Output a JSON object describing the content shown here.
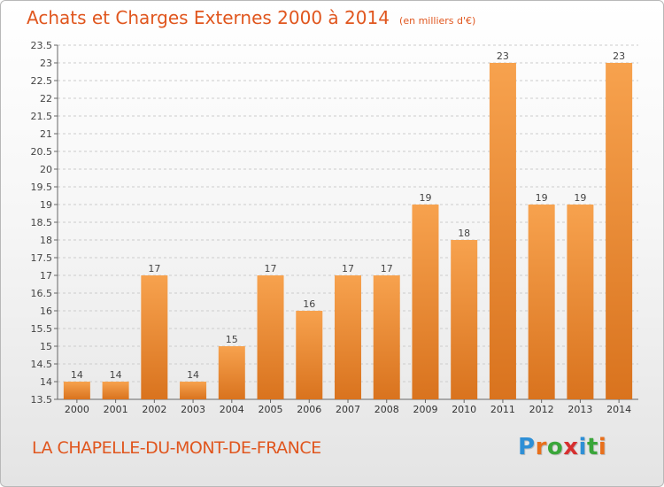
{
  "header": {
    "title": "Achats et Charges Externes 2000 à 2014",
    "unit": "(en milliers d'€)"
  },
  "footer": {
    "place": "LA CHAPELLE-DU-MONT-DE-FRANCE",
    "logo_letters": [
      "P",
      "r",
      "o",
      "x",
      "i",
      "t",
      "i"
    ],
    "logo_colors": [
      "#2e8fd6",
      "#e8701c",
      "#3aa63a",
      "#d62f2f",
      "#2e8fd6",
      "#3aa63a",
      "#e8701c"
    ]
  },
  "colors": {
    "bar_top": "#f7a24e",
    "bar_bottom": "#d9731e",
    "title": "#e0561e",
    "grid": "#cccccc"
  },
  "chart_data": {
    "type": "bar",
    "title": "Achats et Charges Externes 2000 à 2014",
    "categories": [
      "2000",
      "2001",
      "2002",
      "2003",
      "2004",
      "2005",
      "2006",
      "2007",
      "2008",
      "2009",
      "2010",
      "2011",
      "2012",
      "2013",
      "2014"
    ],
    "values": [
      14,
      14,
      17,
      14,
      15,
      17,
      16,
      17,
      17,
      19,
      18,
      23,
      19,
      19,
      23
    ],
    "ylim": [
      13.5,
      23.5
    ],
    "yticks": [
      13.5,
      14,
      14.5,
      15,
      15.5,
      16,
      16.5,
      17,
      17.5,
      18,
      18.5,
      19,
      19.5,
      20,
      20.5,
      21,
      21.5,
      22,
      22.5,
      23,
      23.5
    ],
    "grid": true,
    "data_labels": true
  }
}
